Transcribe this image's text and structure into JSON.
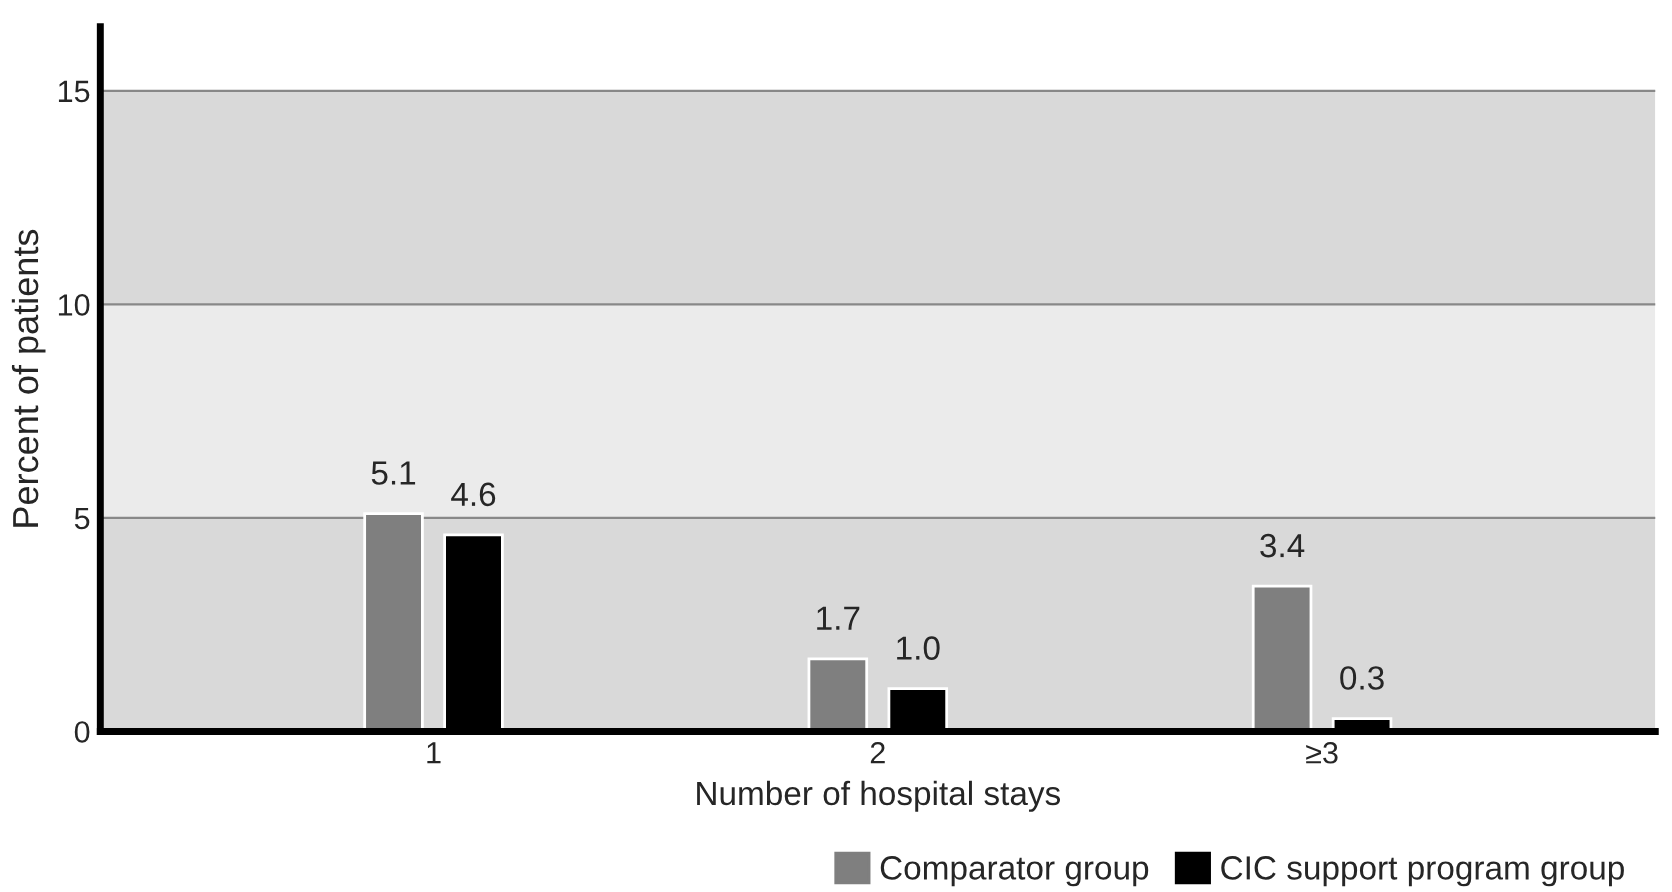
{
  "chart_data": {
    "type": "bar",
    "xlabel": "Number of hospital stays",
    "ylabel": "Percent of patients",
    "categories": [
      "1",
      "2",
      "≥3"
    ],
    "series": [
      {
        "name": "Comparator group",
        "color": "#7f7f7f",
        "values": [
          5.1,
          1.7,
          3.4
        ],
        "value_labels": [
          "5.1",
          "1.7",
          "3.4"
        ]
      },
      {
        "name": "CIC support program group",
        "color": "#000000",
        "values": [
          4.6,
          1.0,
          0.3
        ],
        "value_labels": [
          "4.6",
          "1.0",
          "0.3"
        ]
      }
    ],
    "ylim": [
      0,
      16.5
    ],
    "yticks": [
      0,
      5,
      10,
      15
    ],
    "grid": "y",
    "legend": "bottom right",
    "bands": [
      {
        "axis": "y",
        "from": 0,
        "to": 5,
        "color": "#d9d9d9"
      },
      {
        "axis": "y",
        "from": 5,
        "to": 10,
        "color": "#ebebeb"
      },
      {
        "axis": "y",
        "from": 10,
        "to": 15,
        "color": "#d9d9d9"
      }
    ]
  }
}
